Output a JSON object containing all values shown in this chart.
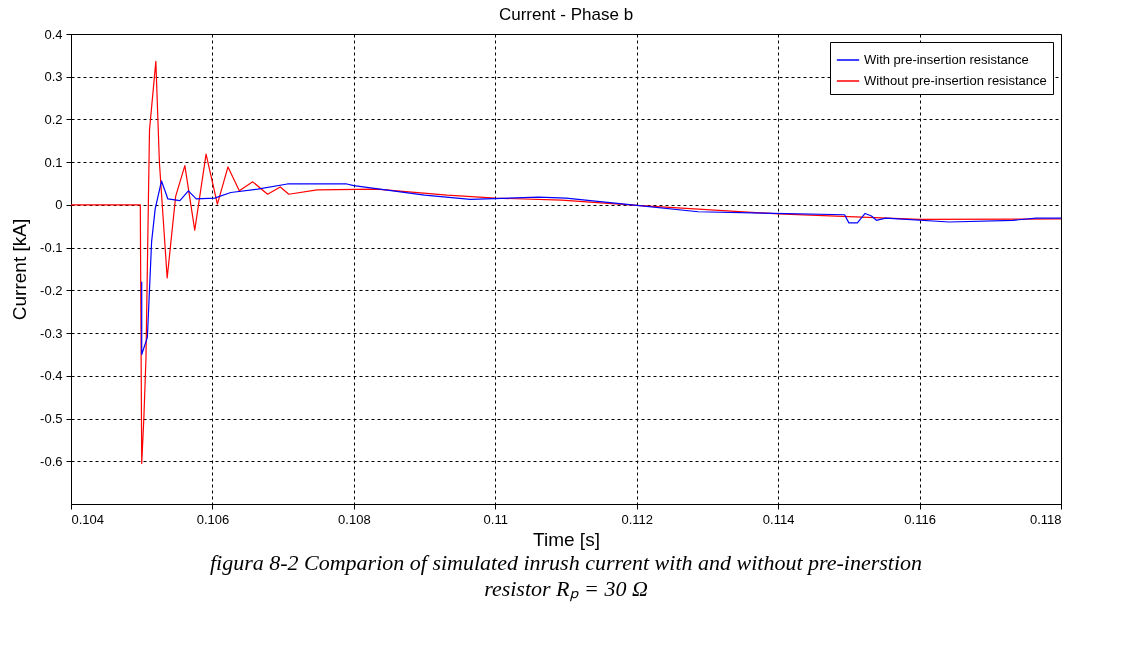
{
  "chart_data": {
    "type": "line",
    "title": "Current - Phase b",
    "xlabel": "Time [s]",
    "ylabel": "Current [kA]",
    "annotations": [
      "figura 8-2 Comparion of simulated inrush current with and without pre-inerstion resistor Rₚ = 30 Ω"
    ],
    "xlim": [
      0.104,
      0.118
    ],
    "xticks": [
      0.104,
      0.106,
      0.108,
      0.11,
      0.112,
      0.114,
      0.116,
      0.118
    ],
    "ylim": [
      -0.7,
      0.4
    ],
    "yticks": [
      -0.6,
      -0.5,
      -0.4,
      -0.3,
      -0.2,
      -0.1,
      0,
      0.1,
      0.2,
      0.3,
      0.4
    ],
    "grid": true,
    "legend": "top right",
    "line_style": "solid",
    "marker": "none",
    "series": [
      {
        "name": "With pre-insertion resistance",
        "color": "#0000ff",
        "x": [
          0.105,
          0.105,
          0.105,
          0.10508,
          0.10514,
          0.10519,
          0.10528,
          0.10537,
          0.10554,
          0.10566,
          0.10577,
          0.10603,
          0.10626,
          0.10664,
          0.10706,
          0.1079,
          0.108,
          0.109,
          0.10965,
          0.11061,
          0.111,
          0.112,
          0.11287,
          0.11494,
          0.115,
          0.11512,
          0.11523,
          0.11532,
          0.11539,
          0.11552,
          0.11642,
          0.11732,
          0.11765,
          0.118
        ],
        "values": [
          -0.18,
          -0.3,
          -0.35,
          -0.31,
          -0.086,
          -0.01,
          0.056,
          0.014,
          0.01,
          0.033,
          0.014,
          0.016,
          0.029,
          0.037,
          0.049,
          0.049,
          0.045,
          0.023,
          0.013,
          0.018,
          0.016,
          -0.001,
          -0.016,
          -0.023,
          -0.042,
          -0.042,
          -0.02,
          -0.026,
          -0.036,
          -0.031,
          -0.04,
          -0.036,
          -0.031,
          -0.031
        ]
      },
      {
        "name": "Without pre-insertion resistance",
        "color": "#ff0000",
        "x": [
          0.104,
          0.10498,
          0.105,
          0.10503,
          0.10506,
          0.10511,
          0.1052,
          0.10525,
          0.10536,
          0.10548,
          0.10561,
          0.10575,
          0.10591,
          0.10607,
          0.10622,
          0.10638,
          0.10657,
          0.10678,
          0.10696,
          0.10708,
          0.10748,
          0.10832,
          0.10932,
          0.11,
          0.11094,
          0.112,
          0.114,
          0.116,
          0.118
        ],
        "values": [
          0,
          0,
          -0.605,
          -0.5,
          -0.36,
          0.175,
          0.336,
          0.1,
          -0.171,
          0.02,
          0.092,
          -0.059,
          0.119,
          0.002,
          0.089,
          0.033,
          0.054,
          0.025,
          0.042,
          0.025,
          0.035,
          0.037,
          0.023,
          0.016,
          0.011,
          -0.001,
          -0.021,
          -0.034,
          -0.033
        ]
      }
    ]
  }
}
